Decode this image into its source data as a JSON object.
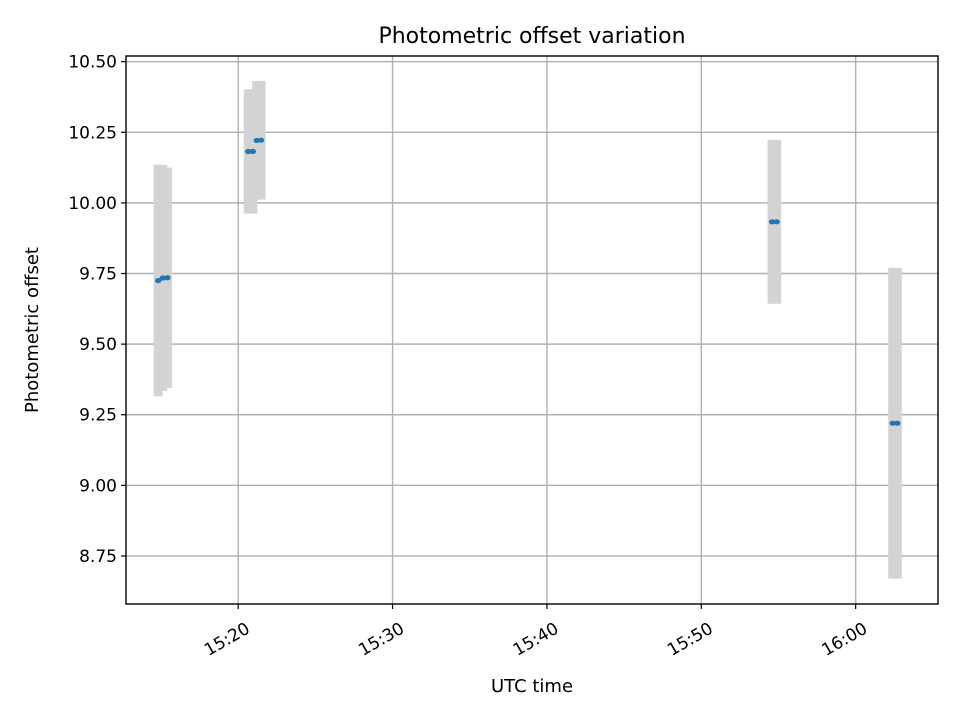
{
  "chart_data": {
    "type": "scatter",
    "title": "Photometric offset variation",
    "xlabel": "UTC time",
    "ylabel": "Photometric offset",
    "x_tick_labels": [
      "15:20",
      "15:30",
      "15:40",
      "15:50",
      "16:00"
    ],
    "y_tick_labels": [
      "8.75",
      "9.00",
      "9.25",
      "9.50",
      "9.75",
      "10.00",
      "10.25",
      "10.50"
    ],
    "xlim": [
      "15:12:44",
      "16:05:20"
    ],
    "ylim": [
      8.58,
      10.52
    ],
    "grid": true,
    "colors": {
      "point": "#1f77b4",
      "errorbar": "#d3d3d3",
      "grid": "#b0b0b0",
      "axes": "#000000"
    },
    "series": [
      {
        "points": [
          {
            "x": "15:14:49",
            "y": 9.725,
            "yerr": 0.41
          },
          {
            "x": "15:15:07",
            "y": 9.734,
            "yerr": 0.4
          },
          {
            "x": "15:15:25",
            "y": 9.735,
            "yerr": 0.39
          },
          {
            "x": "15:20:39",
            "y": 10.182,
            "yerr": 0.22
          },
          {
            "x": "15:20:57",
            "y": 10.182,
            "yerr": 0.22
          },
          {
            "x": "15:21:12",
            "y": 10.221,
            "yerr": 0.21
          },
          {
            "x": "15:21:29",
            "y": 10.222,
            "yerr": 0.21
          },
          {
            "x": "15:54:35",
            "y": 9.933,
            "yerr": 0.29
          },
          {
            "x": "15:54:53",
            "y": 9.933,
            "yerr": 0.29
          },
          {
            "x": "16:02:24",
            "y": 9.22,
            "yerr": 0.55
          },
          {
            "x": "16:02:42",
            "y": 9.22,
            "yerr": 0.55
          }
        ]
      }
    ]
  }
}
